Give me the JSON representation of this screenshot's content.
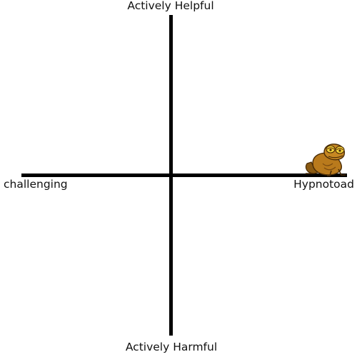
{
  "axes": {
    "top_label": "Actively Helpful",
    "bottom_label": "Actively Harmful",
    "left_label": "challenging",
    "right_label": "Hypnotoad"
  },
  "marker": {
    "icon": "hypnotoad-icon",
    "colors": {
      "body": "#b97a1c",
      "shadow": "#7a4a10",
      "eye": "#f2d23a"
    }
  }
}
